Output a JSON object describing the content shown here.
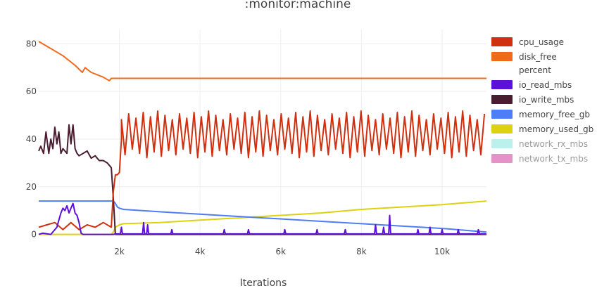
{
  "chart_data": {
    "type": "line",
    "title": ":monitor:machine",
    "xlabel": "Iterations",
    "ylabel": "",
    "xlim": [
      0,
      11100
    ],
    "ylim": [
      -1,
      86
    ],
    "x_ticks": [
      2000,
      4000,
      6000,
      8000,
      10000
    ],
    "x_tick_labels": [
      "2k",
      "4k",
      "6k",
      "8k",
      "10k"
    ],
    "y_ticks": [
      0,
      20,
      40,
      60,
      80
    ],
    "y_tick_labels": [
      "0",
      "20",
      "40",
      "60",
      "80"
    ],
    "grid": true,
    "legend_position": "right",
    "series": [
      {
        "name": "cpu_usage",
        "color": "#d0300f",
        "visible": true,
        "style": "oscillating",
        "x": [
          0,
          200,
          400,
          600,
          800,
          1000,
          1200,
          1400,
          1600,
          1800,
          1850,
          1900,
          1950,
          2000,
          2050,
          2100,
          11100
        ],
        "y": [
          3,
          4,
          5,
          2,
          5,
          2,
          4,
          3,
          5,
          3,
          18,
          25,
          25,
          26,
          40,
          42,
          41
        ],
        "oscillation": {
          "from_x": 2050,
          "period": 180,
          "high": 50,
          "low": 34
        }
      },
      {
        "name": "disk_free",
        "color": "#ef6b1c",
        "visible": true,
        "x": [
          0,
          300,
          600,
          900,
          1080,
          1150,
          1300,
          1600,
          1700,
          1750,
          1800,
          11100
        ],
        "y": [
          81,
          78,
          75,
          71,
          68,
          70,
          68,
          66,
          65,
          64.5,
          65.5,
          65.5
        ]
      },
      {
        "name": "percent",
        "color": "#cccccc",
        "visible": false,
        "legend_only": true,
        "x": [],
        "y": []
      },
      {
        "name": "io_read_mbs",
        "color": "#5c10d8",
        "visible": true,
        "style": "spiky",
        "x": [
          0,
          100,
          300,
          450,
          500,
          550,
          600,
          650,
          700,
          750,
          800,
          850,
          900,
          950,
          1000,
          1050,
          1100,
          1850,
          1900,
          11100
        ],
        "y": [
          0,
          0.5,
          0,
          3,
          6,
          9,
          11,
          10,
          12,
          9,
          11,
          13,
          9,
          8,
          5,
          0.5,
          0,
          0,
          0.2,
          0.2
        ],
        "spikes": [
          {
            "x": 2050,
            "y": 3
          },
          {
            "x": 2600,
            "y": 5
          },
          {
            "x": 2700,
            "y": 4
          },
          {
            "x": 3300,
            "y": 2
          },
          {
            "x": 4600,
            "y": 2
          },
          {
            "x": 5200,
            "y": 2
          },
          {
            "x": 6100,
            "y": 2
          },
          {
            "x": 6900,
            "y": 2
          },
          {
            "x": 7600,
            "y": 2
          },
          {
            "x": 8350,
            "y": 4
          },
          {
            "x": 8550,
            "y": 3
          },
          {
            "x": 8700,
            "y": 8
          },
          {
            "x": 9400,
            "y": 2
          },
          {
            "x": 9700,
            "y": 3
          },
          {
            "x": 10000,
            "y": 2
          },
          {
            "x": 10400,
            "y": 2
          },
          {
            "x": 10900,
            "y": 2
          }
        ]
      },
      {
        "name": "io_write_mbs",
        "color": "#4a1c30",
        "visible": true,
        "x": [
          0,
          50,
          120,
          180,
          250,
          300,
          350,
          400,
          450,
          500,
          550,
          600,
          650,
          700,
          750,
          800,
          850,
          900,
          950,
          1000,
          1100,
          1200,
          1300,
          1400,
          1500,
          1600,
          1700,
          1750,
          1800,
          1850,
          1900,
          1950,
          2000,
          11100
        ],
        "y": [
          35,
          37,
          34,
          43,
          34,
          40,
          36,
          45,
          38,
          43,
          34,
          36,
          35,
          34,
          46,
          38,
          46,
          36,
          34,
          33,
          34,
          35,
          32,
          33,
          31,
          31,
          30,
          29,
          28,
          15,
          0,
          0,
          0,
          0
        ]
      },
      {
        "name": "memory_free_gb",
        "color": "#4f7cf7",
        "visible": true,
        "x": [
          0,
          1800,
          1850,
          1900,
          1950,
          2000,
          2100,
          3000,
          5000,
          7000,
          9000,
          10000,
          11100
        ],
        "y": [
          14,
          14,
          14,
          13,
          11.5,
          11,
          10.5,
          9.5,
          7.5,
          5.5,
          3.5,
          2.5,
          1
        ]
      },
      {
        "name": "memory_used_gb",
        "color": "#dcd211",
        "visible": true,
        "x": [
          0,
          1800,
          1850,
          1900,
          1950,
          2000,
          2100,
          3000,
          4000,
          5000,
          6000,
          7000,
          8000,
          9000,
          10000,
          11100
        ],
        "y": [
          0,
          0,
          1,
          3,
          3.5,
          4,
          4.5,
          5,
          6,
          7,
          8,
          9,
          10.5,
          11.5,
          12.5,
          14
        ]
      },
      {
        "name": "network_rx_mbs",
        "color": "#b3f0ea",
        "visible": false,
        "x": [],
        "y": []
      },
      {
        "name": "network_tx_mbs",
        "color": "#e186c2",
        "visible": false,
        "x": [],
        "y": []
      }
    ]
  }
}
